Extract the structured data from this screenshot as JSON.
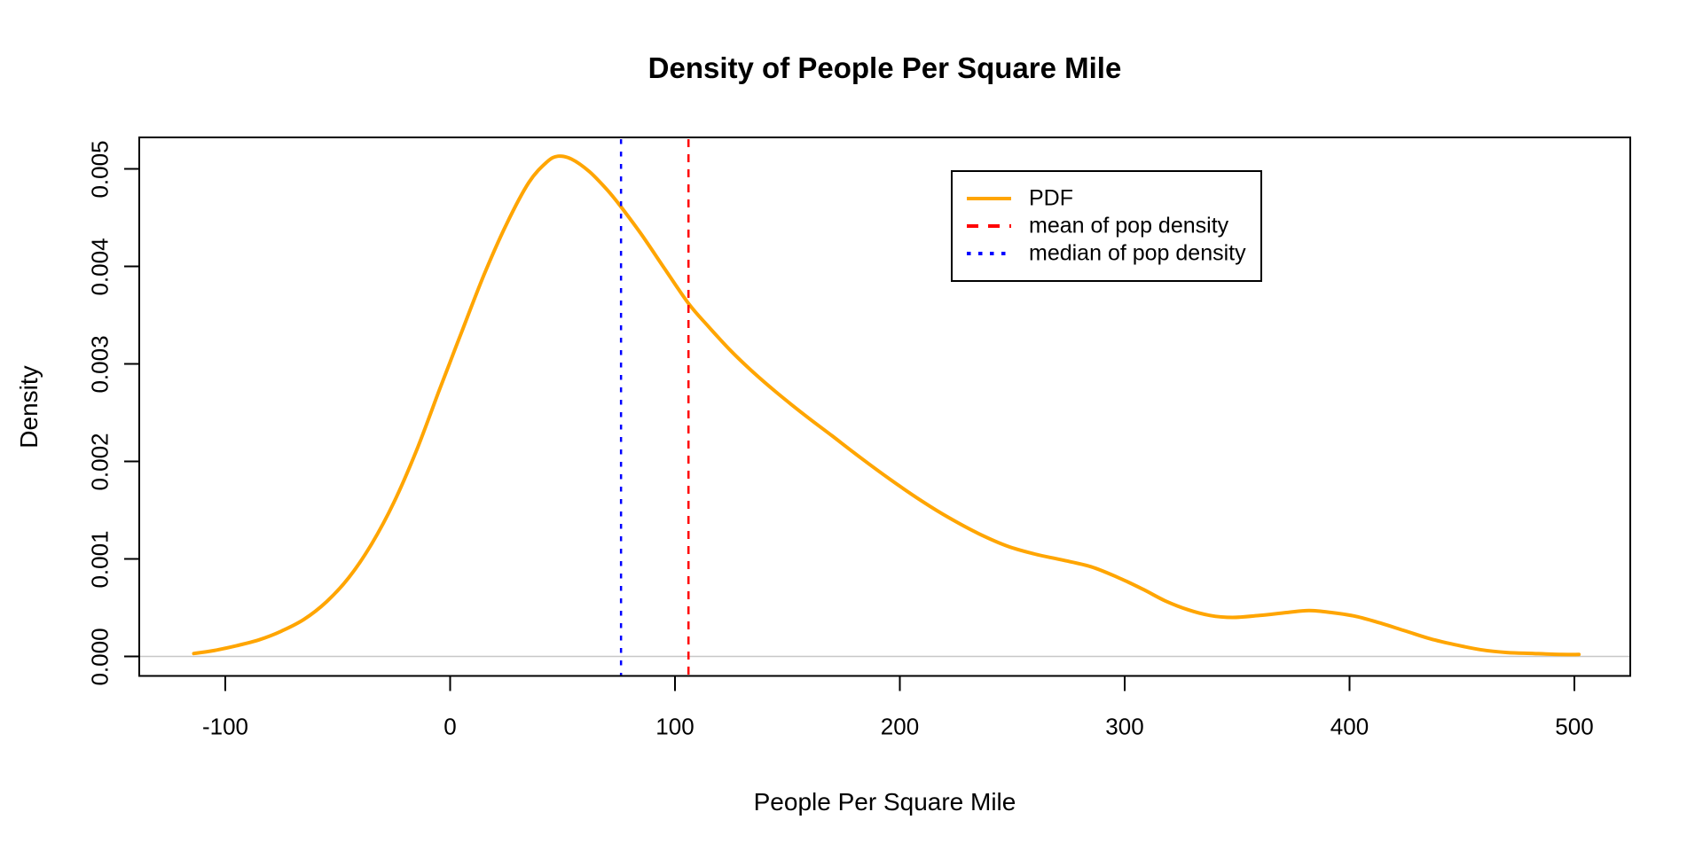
{
  "figure": {
    "title": "Density of People Per Square Mile",
    "x_axis_label": "People Per Square Mile",
    "y_axis_label": "Density"
  },
  "chart_data": {
    "type": "line",
    "subtype": "kernel-density",
    "title": "Density of People Per Square Mile",
    "xlabel": "People Per Square Mile",
    "ylabel": "Density",
    "xlim": [
      -138,
      525
    ],
    "ylim": [
      -0.0002,
      0.00533
    ],
    "grid": false,
    "x_ticks": [
      -100,
      0,
      100,
      200,
      300,
      400,
      500
    ],
    "y_tick_labels": [
      "0.000",
      "0.001",
      "0.002",
      "0.003",
      "0.004",
      "0.005"
    ],
    "zero_line": {
      "y": 0,
      "color": "#C8C8C8"
    },
    "series": [
      {
        "name": "PDF",
        "color": "#FFA500",
        "style": "solid",
        "line_width": 4,
        "points": [
          [
            -114,
            3e-05
          ],
          [
            -105,
            6e-05
          ],
          [
            -95,
            0.00011
          ],
          [
            -85,
            0.00017
          ],
          [
            -75,
            0.00026
          ],
          [
            -65,
            0.00038
          ],
          [
            -55,
            0.00056
          ],
          [
            -45,
            0.00081
          ],
          [
            -35,
            0.00115
          ],
          [
            -25,
            0.00158
          ],
          [
            -15,
            0.00211
          ],
          [
            -5,
            0.00272
          ],
          [
            0,
            0.00302
          ],
          [
            5,
            0.00332
          ],
          [
            15,
            0.00391
          ],
          [
            25,
            0.00443
          ],
          [
            35,
            0.00486
          ],
          [
            43,
            0.00507
          ],
          [
            48,
            0.00513
          ],
          [
            54,
            0.0051
          ],
          [
            62,
            0.00497
          ],
          [
            70,
            0.00478
          ],
          [
            76,
            0.00461
          ],
          [
            85,
            0.00433
          ],
          [
            95,
            0.00399
          ],
          [
            106,
            0.00362
          ],
          [
            115,
            0.00338
          ],
          [
            125,
            0.00313
          ],
          [
            135,
            0.00291
          ],
          [
            145,
            0.00271
          ],
          [
            158,
            0.00247
          ],
          [
            170,
            0.00226
          ],
          [
            183,
            0.00203
          ],
          [
            196,
            0.00181
          ],
          [
            210,
            0.00159
          ],
          [
            222,
            0.00142
          ],
          [
            235,
            0.00126
          ],
          [
            248,
            0.00113
          ],
          [
            260,
            0.00105
          ],
          [
            272,
            0.00099
          ],
          [
            285,
            0.00092
          ],
          [
            297,
            0.00081
          ],
          [
            308,
            0.00069
          ],
          [
            318,
            0.00057
          ],
          [
            328,
            0.00048
          ],
          [
            338,
            0.00042
          ],
          [
            348,
            0.0004
          ],
          [
            360,
            0.00042
          ],
          [
            372,
            0.00045
          ],
          [
            382,
            0.00047
          ],
          [
            392,
            0.00045
          ],
          [
            403,
            0.00041
          ],
          [
            414,
            0.00034
          ],
          [
            425,
            0.00026
          ],
          [
            436,
            0.00018
          ],
          [
            447,
            0.00012
          ],
          [
            458,
            7e-05
          ],
          [
            470,
            4e-05
          ],
          [
            482,
            3e-05
          ],
          [
            494,
            2e-05
          ],
          [
            502,
            2e-05
          ]
        ]
      }
    ],
    "vlines": [
      {
        "name": "mean of pop density",
        "x": 106,
        "color": "#FF0000",
        "style": "dashed",
        "line_width": 2.5
      },
      {
        "name": "median of pop density",
        "x": 76,
        "color": "#0000FF",
        "style": "dotted",
        "line_width": 2.5
      }
    ],
    "legend": {
      "position": "top-right",
      "entries": [
        {
          "label": "PDF",
          "color": "#FFA500",
          "style": "solid"
        },
        {
          "label": "mean of pop density",
          "color": "#FF0000",
          "style": "dashed"
        },
        {
          "label": "median of pop density",
          "color": "#0000FF",
          "style": "dotted"
        }
      ]
    }
  }
}
